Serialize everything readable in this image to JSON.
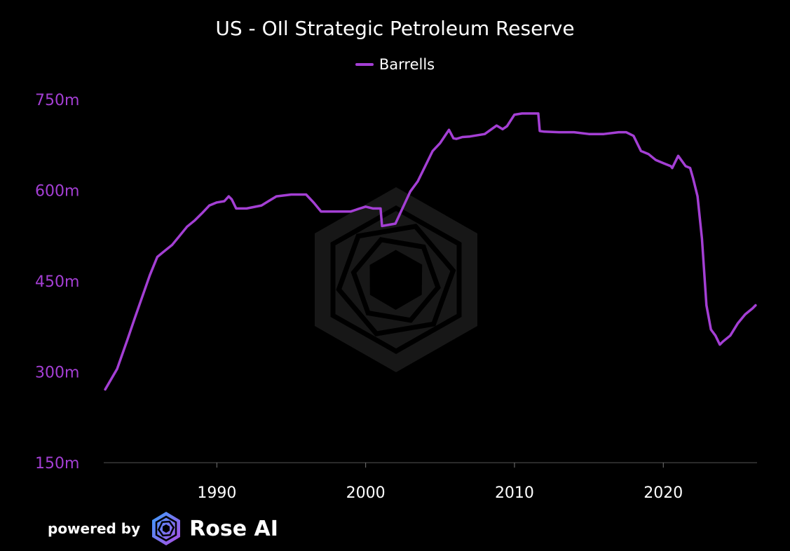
{
  "chart_data": {
    "type": "line",
    "title": "US - OIl Strategic Petroleum Reserve",
    "xlabel": "",
    "ylabel": "",
    "x_ticks": [
      "1990",
      "2000",
      "2010",
      "2020"
    ],
    "y_ticks": [
      "150m",
      "300m",
      "450m",
      "600m",
      "750m"
    ],
    "xlim": [
      1982.4,
      2026.3
    ],
    "ylim": [
      150,
      750
    ],
    "grid": false,
    "legend_position": "top-center",
    "series": [
      {
        "name": "Barrells",
        "color": "#a43fd4",
        "x": [
          1982.5,
          1983.3,
          1984.0,
          1984.5,
          1985.0,
          1985.5,
          1986.0,
          1986.5,
          1987.0,
          1987.5,
          1988.0,
          1988.5,
          1989.0,
          1989.5,
          1990.0,
          1990.5,
          1990.8,
          1991.0,
          1991.3,
          1992.0,
          1993.0,
          1994.0,
          1995.0,
          1996.0,
          1996.5,
          1997.0,
          1998.0,
          1999.0,
          1999.6,
          2000.0,
          2000.5,
          2001.0,
          2001.1,
          2002.0,
          2003.0,
          2003.5,
          2004.0,
          2004.5,
          2005.0,
          2005.6,
          2005.9,
          2006.1,
          2006.5,
          2007.0,
          2008.0,
          2008.8,
          2009.2,
          2009.5,
          2010.0,
          2010.5,
          2011.0,
          2011.6,
          2011.7,
          2012.0,
          2013.0,
          2014.0,
          2015.0,
          2016.0,
          2017.0,
          2017.5,
          2018.0,
          2018.5,
          2019.0,
          2019.5,
          2020.0,
          2020.5,
          2020.6,
          2021.0,
          2021.5,
          2021.8,
          2022.0,
          2022.3,
          2022.6,
          2022.9,
          2023.2,
          2023.5,
          2023.8,
          2024.0,
          2024.5,
          2025.0,
          2025.5,
          2026.0,
          2026.2
        ],
        "values": [
          271,
          305,
          354,
          390,
          425,
          460,
          490,
          500,
          510,
          525,
          540,
          550,
          562,
          575,
          580,
          582,
          590,
          585,
          570,
          570,
          575,
          590,
          593,
          593,
          580,
          565,
          565,
          565,
          570,
          573,
          570,
          570,
          541,
          545,
          598,
          615,
          640,
          665,
          678,
          700,
          686,
          685,
          688,
          689,
          693,
          707,
          701,
          706,
          725,
          727,
          727,
          727,
          698,
          697,
          696,
          696,
          693,
          693,
          696,
          696,
          690,
          665,
          660,
          650,
          645,
          640,
          637,
          657,
          640,
          637,
          620,
          590,
          520,
          410,
          370,
          360,
          345,
          350,
          360,
          380,
          395,
          405,
          410
        ]
      }
    ]
  },
  "footer": {
    "powered_by": "powered by",
    "brand": "Rose AI"
  }
}
